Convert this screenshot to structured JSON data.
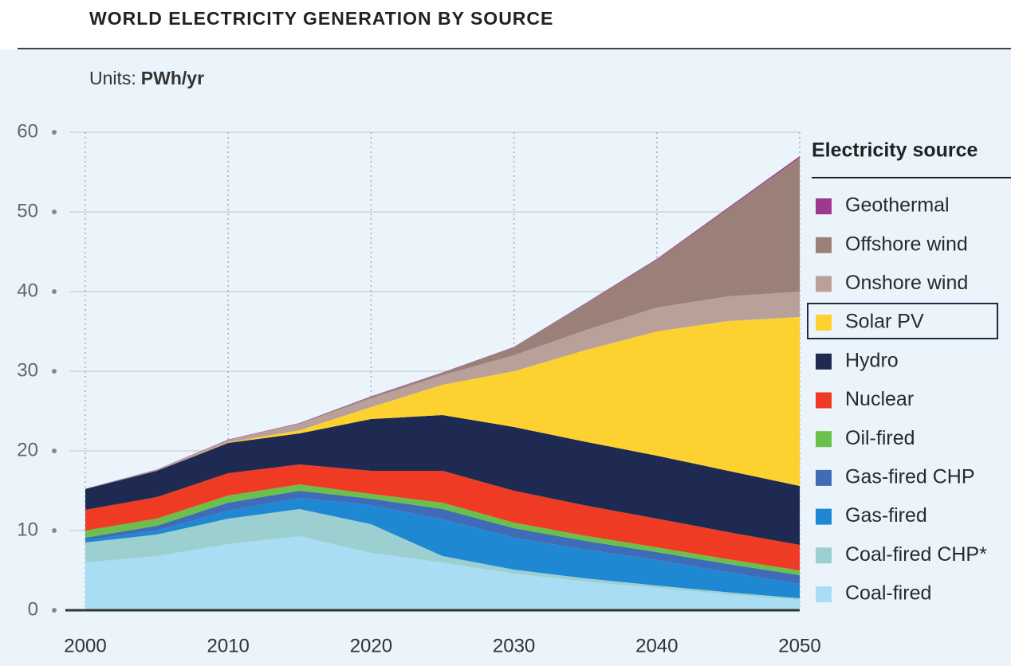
{
  "chart_data": {
    "type": "stacked_area",
    "title": "WORLD ELECTRICITY GENERATION BY SOURCE",
    "units_label": "Units:",
    "units": "PWh/yr",
    "legend_title": "Electricity source",
    "x": [
      2000,
      2005,
      2010,
      2015,
      2020,
      2025,
      2030,
      2035,
      2040,
      2045,
      2050
    ],
    "xlim": [
      2000,
      2050
    ],
    "xticks": [
      2000,
      2010,
      2020,
      2030,
      2040,
      2050
    ],
    "ylim": [
      0,
      60
    ],
    "yticks": [
      0,
      10,
      20,
      30,
      40,
      50,
      60
    ],
    "grid": true,
    "legend": "right",
    "series": [
      {
        "name": "Coal-fired",
        "color": "#a8ddf3",
        "values": [
          6.0,
          6.8,
          8.3,
          9.3,
          7.2,
          6.0,
          4.6,
          3.6,
          2.8,
          2.0,
          1.3
        ]
      },
      {
        "name": "Coal-fired CHP*",
        "color": "#9ccfd0",
        "values": [
          2.5,
          2.7,
          3.2,
          3.4,
          3.6,
          0.8,
          0.5,
          0.4,
          0.3,
          0.25,
          0.2
        ]
      },
      {
        "name": "Gas-fired",
        "color": "#1f88d2",
        "values": [
          0.3,
          0.5,
          1.0,
          1.4,
          2.4,
          4.6,
          4.0,
          3.6,
          3.2,
          2.5,
          1.8
        ]
      },
      {
        "name": "Gas-fired CHP",
        "color": "#3f6cb8",
        "values": [
          0.3,
          0.6,
          1.0,
          0.9,
          0.8,
          1.3,
          1.2,
          1.1,
          1.0,
          1.05,
          1.1
        ]
      },
      {
        "name": "Oil-fired",
        "color": "#6bbf4b",
        "values": [
          0.9,
          0.9,
          0.9,
          0.8,
          0.6,
          0.8,
          0.7,
          0.65,
          0.6,
          0.6,
          0.6
        ]
      },
      {
        "name": "Nuclear",
        "color": "#ef3b24",
        "values": [
          2.6,
          2.7,
          2.8,
          2.5,
          2.9,
          4.0,
          4.0,
          3.8,
          3.6,
          3.4,
          3.2
        ]
      },
      {
        "name": "Hydro",
        "color": "#1f2a52",
        "values": [
          2.6,
          3.3,
          3.8,
          3.9,
          6.5,
          7.0,
          8.0,
          8.0,
          7.9,
          7.7,
          7.4
        ]
      },
      {
        "name": "Solar PV",
        "color": "#fdd230",
        "values": [
          0,
          0,
          0.05,
          0.4,
          1.5,
          3.8,
          7.0,
          11.5,
          15.6,
          18.8,
          21.2
        ]
      },
      {
        "name": "Onshore wind",
        "color": "#b9a19a",
        "values": [
          0,
          0.1,
          0.3,
          0.8,
          1.1,
          1.2,
          2.0,
          2.5,
          3.0,
          3.1,
          3.2
        ]
      },
      {
        "name": "Offshore wind",
        "color": "#9b8079",
        "values": [
          0,
          0,
          0.02,
          0.05,
          0.2,
          0.3,
          1.0,
          3.3,
          6.0,
          11.0,
          16.8
        ]
      },
      {
        "name": "Geothermal",
        "color": "#9b3a8e",
        "values": [
          0.05,
          0.05,
          0.05,
          0.05,
          0.05,
          0.05,
          0.05,
          0.08,
          0.1,
          0.15,
          0.2
        ]
      }
    ]
  }
}
